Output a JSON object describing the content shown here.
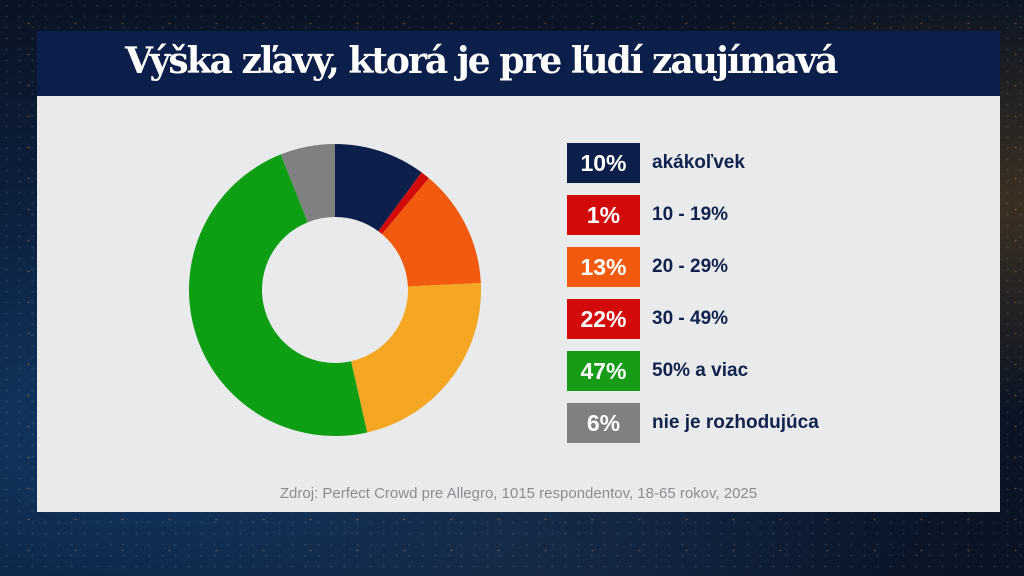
{
  "title": "Výška zľavy, ktorá je pre ľudí zaujímavá",
  "source": "Zdroj: Perfect Crowd pre Allegro, 1015 respondentov, 18-65 rokov, 2025",
  "legend": [
    {
      "value": "10%",
      "label": "akákoľvek",
      "color": "#0c1f4a"
    },
    {
      "value": "1%",
      "label": "10 - 19%",
      "color": "#d20a0a"
    },
    {
      "value": "13%",
      "label": "20 - 29%",
      "color": "#f25a0f"
    },
    {
      "value": "22%",
      "label": "30 - 49%",
      "color": "#d20a0a"
    },
    {
      "value": "47%",
      "label": "50% a viac",
      "color": "#169c16"
    },
    {
      "value": "6%",
      "label": "nie je rozhodujúca",
      "color": "#808080"
    }
  ],
  "chart_data": {
    "type": "pie",
    "subtype": "donut",
    "title": "Výška zľavy, ktorá je pre ľudí zaujímavá",
    "categories": [
      "akákoľvek",
      "10 - 19%",
      "20 - 29%",
      "30 - 49%",
      "50% a viac",
      "nie je rozhodujúca"
    ],
    "values": [
      10,
      1,
      13,
      22,
      47,
      6
    ],
    "unit": "%",
    "slice_colors": [
      "#0c1f4a",
      "#d20a0a",
      "#f25a0f",
      "#f5a623",
      "#0d9e14",
      "#808080"
    ],
    "legend_position": "right",
    "source": "Zdroj: Perfect Crowd pre Allegro, 1015 respondentov, 18-65 rokov, 2025"
  }
}
